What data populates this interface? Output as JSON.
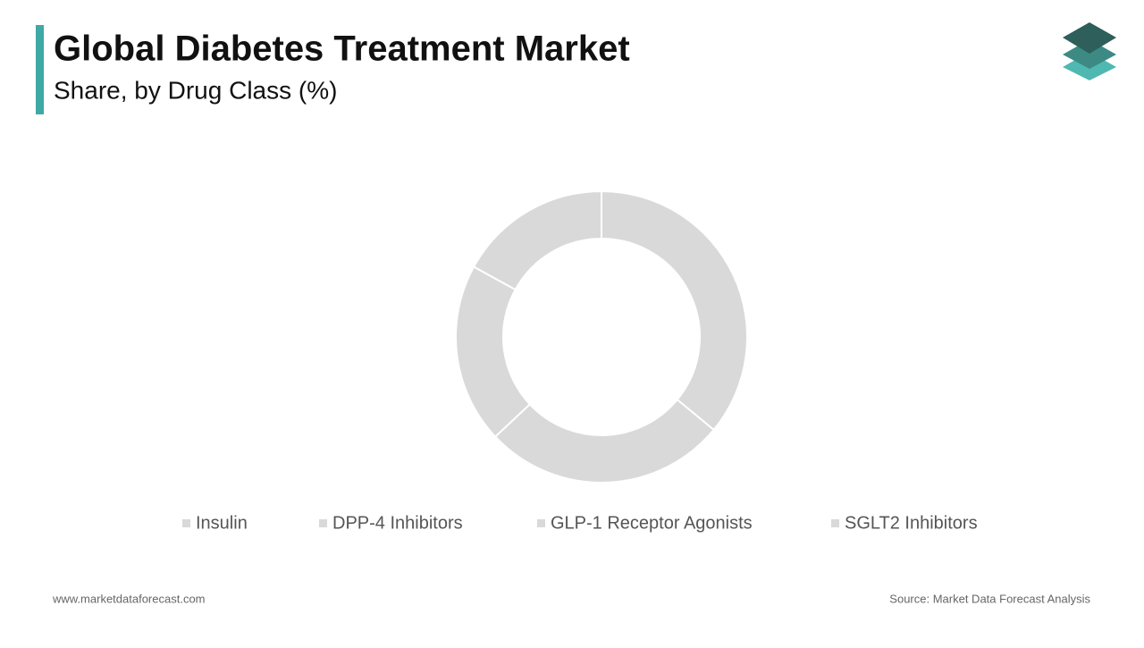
{
  "chart_data": {
    "type": "donut",
    "title": "Global Diabetes Treatment Market",
    "subtitle": "Share, by Drug Class (%)",
    "categories": [
      "Insulin",
      "DPP-4 Inhibitors",
      "GLP-1 Receptor Agonists",
      "SGLT2 Inhibitors"
    ],
    "values": [
      36,
      27,
      20,
      17
    ],
    "colors": [
      "#d9d9d9",
      "#d9d9d9",
      "#d9d9d9",
      "#d9d9d9"
    ],
    "legend": "bottom",
    "source": "Source: Market Data Forecast Analysis",
    "website": "www.marketdataforecast.com"
  }
}
